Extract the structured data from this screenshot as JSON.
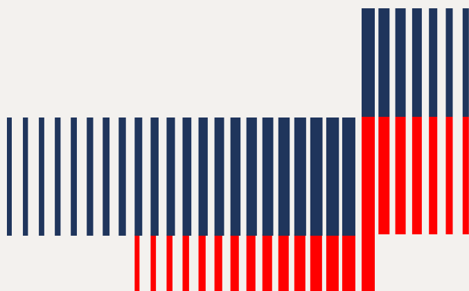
{
  "palette": {
    "background": "#F3F1EE",
    "navy": "#1F355C",
    "red": "#FF0000"
  },
  "left_group": {
    "stripe_count": 22,
    "red_stripe_count": 14
  },
  "right_group": {
    "stripe_count": 7
  },
  "center_band": {
    "color": "red"
  }
}
